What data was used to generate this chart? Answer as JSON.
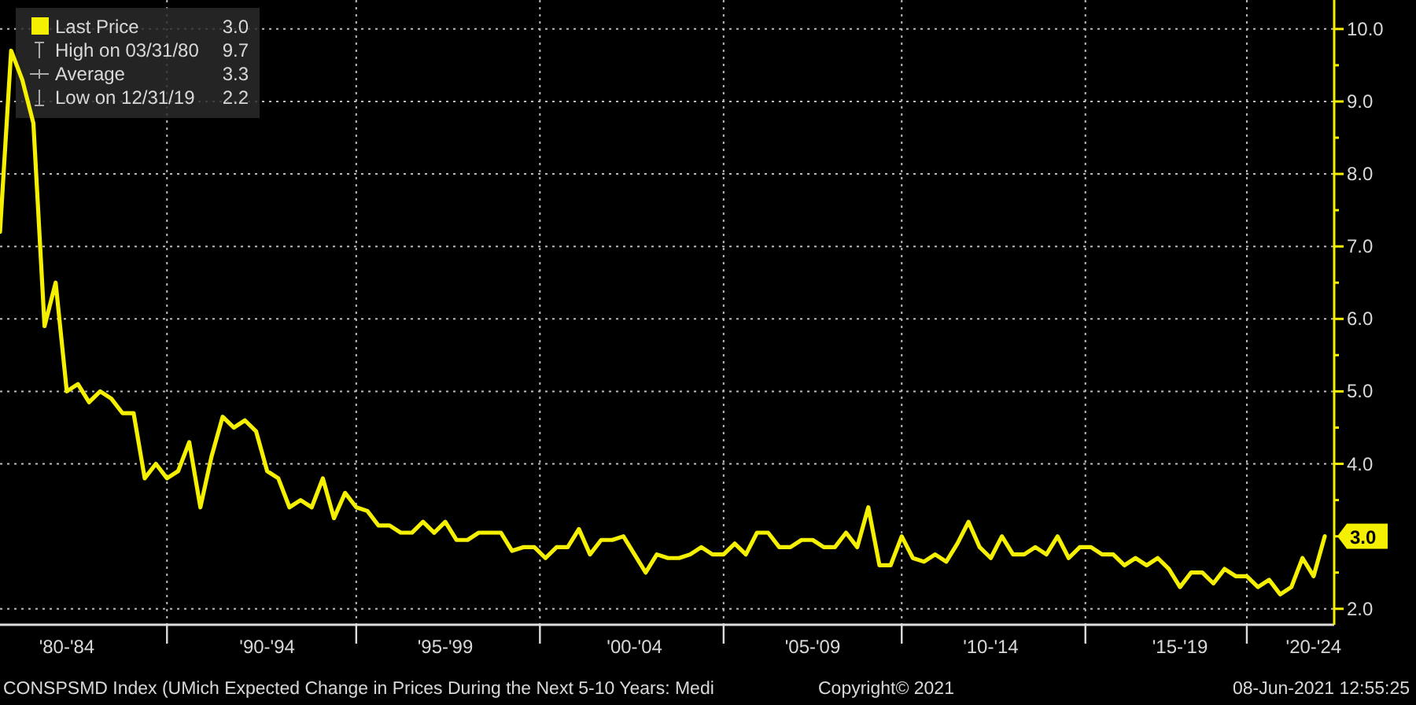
{
  "chart_data": {
    "type": "line",
    "legend": "top left",
    "grid": true,
    "marker": "none",
    "line_style": "solid",
    "categories": [
      null,
      null,
      null,
      null,
      null,
      null,
      "'80-'84",
      null,
      null,
      null,
      null,
      null,
      null,
      null,
      null,
      null,
      null,
      null,
      null,
      null,
      null,
      null,
      null,
      null,
      "'90-'94",
      null,
      null,
      null,
      null,
      null,
      null,
      null,
      null,
      null,
      null,
      null,
      null,
      null,
      null,
      null,
      "'95-'99",
      null,
      null,
      null,
      null,
      null,
      null,
      null,
      null,
      null,
      null,
      null,
      null,
      null,
      null,
      null,
      null,
      "'00-'04",
      null,
      null,
      null,
      null,
      null,
      null,
      null,
      null,
      null,
      null,
      null,
      null,
      null,
      null,
      null,
      "'05-'09",
      null,
      null,
      null,
      null,
      null,
      null,
      null,
      null,
      null,
      null,
      null,
      null,
      null,
      null,
      null,
      "'10-'14",
      null,
      null,
      null,
      null,
      null,
      null,
      null,
      null,
      null,
      null,
      null,
      null,
      null,
      null,
      null,
      null,
      "'15-'19",
      null,
      null,
      null,
      null,
      null,
      null,
      null,
      null,
      null,
      null,
      null,
      "'20-'24",
      null
    ],
    "ylim": [
      1.78,
      10.4
    ],
    "yticks": [
      {
        "value": 2,
        "label": "2.0"
      },
      {
        "value": 3,
        "label": null
      },
      {
        "value": 4,
        "label": "4.0"
      },
      {
        "value": 5,
        "label": "5.0"
      },
      {
        "value": 6,
        "label": "6.0"
      },
      {
        "value": 7,
        "label": "7.0"
      },
      {
        "value": 8,
        "label": "8.0"
      },
      {
        "value": 9,
        "label": "9.0"
      },
      {
        "value": 10,
        "label": "10.0"
      },
      {
        "value": 2.5,
        "label": null
      },
      {
        "value": 3.5,
        "label": null
      },
      {
        "value": 4.5,
        "label": null
      },
      {
        "value": 5.5,
        "label": null
      },
      {
        "value": 6.5,
        "label": null
      },
      {
        "value": 7.5,
        "label": null
      },
      {
        "value": 8.5,
        "label": null
      },
      {
        "value": 9.5,
        "label": null
      }
    ],
    "series": [
      {
        "name": "Last Price",
        "color": "#f5f000",
        "values": [
          7.2,
          9.7,
          9.3,
          8.7,
          5.9,
          6.5,
          5.0,
          5.1,
          4.85,
          5.0,
          4.9,
          4.7,
          4.7,
          3.8,
          4.0,
          3.8,
          3.9,
          4.3,
          3.4,
          4.1,
          4.65,
          4.5,
          4.6,
          4.45,
          3.9,
          3.8,
          3.4,
          3.5,
          3.4,
          3.8,
          3.25,
          3.6,
          3.4,
          3.35,
          3.15,
          3.15,
          3.05,
          3.05,
          3.2,
          3.05,
          3.2,
          2.95,
          2.95,
          3.05,
          3.05,
          3.05,
          2.8,
          2.85,
          2.85,
          2.7,
          2.85,
          2.85,
          3.1,
          2.75,
          2.95,
          2.95,
          3.0,
          2.75,
          2.5,
          2.75,
          2.7,
          2.7,
          2.75,
          2.85,
          2.75,
          2.75,
          2.9,
          2.75,
          3.05,
          3.05,
          2.85,
          2.85,
          2.95,
          2.95,
          2.85,
          2.85,
          3.05,
          2.85,
          3.4,
          2.6,
          2.6,
          3.0,
          2.7,
          2.65,
          2.75,
          2.65,
          2.9,
          3.2,
          2.85,
          2.7,
          3.0,
          2.75,
          2.75,
          2.85,
          2.75,
          3.0,
          2.7,
          2.85,
          2.85,
          2.75,
          2.75,
          2.6,
          2.7,
          2.6,
          2.7,
          2.55,
          2.3,
          2.5,
          2.5,
          2.35,
          2.55,
          2.45,
          2.45,
          2.3,
          2.4,
          2.2,
          2.3,
          2.7,
          2.45,
          3.0
        ]
      }
    ],
    "annotations": [
      "3.0",
      "3.0",
      "High on 03/31/80 9.7",
      "Average 3.3",
      "Low on 12/31/19 2.2",
      "CONSPSMD Index (UMich Expected Change in Prices During the Next 5-10 Years: Medi",
      "Copyright© 2021",
      "08-Jun-2021 12:55:25"
    ]
  }
}
